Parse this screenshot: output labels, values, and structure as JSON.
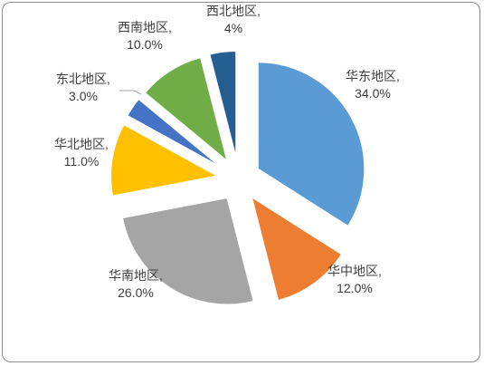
{
  "chart_data": {
    "type": "pie",
    "title": "",
    "slices": [
      {
        "name": "华东地区",
        "value": 34.0,
        "label": "34.0%",
        "color": "#5B9BD5"
      },
      {
        "name": "华中地区",
        "value": 12.0,
        "label": "12.0%",
        "color": "#ED7D31"
      },
      {
        "name": "华南地区",
        "value": 26.0,
        "label": "26.0%",
        "color": "#A5A5A5"
      },
      {
        "name": "华北地区",
        "value": 11.0,
        "label": "11.0%",
        "color": "#FFC000"
      },
      {
        "name": "东北地区",
        "value": 3.0,
        "label": "3.0%",
        "color": "#4472C4"
      },
      {
        "name": "西南地区",
        "value": 10.0,
        "label": "10.0%",
        "color": "#70AD47"
      },
      {
        "name": "西北地区",
        "value": 4.0,
        "label": "4%",
        "color": "#255E91"
      }
    ],
    "legend": "none",
    "exploded": true
  }
}
